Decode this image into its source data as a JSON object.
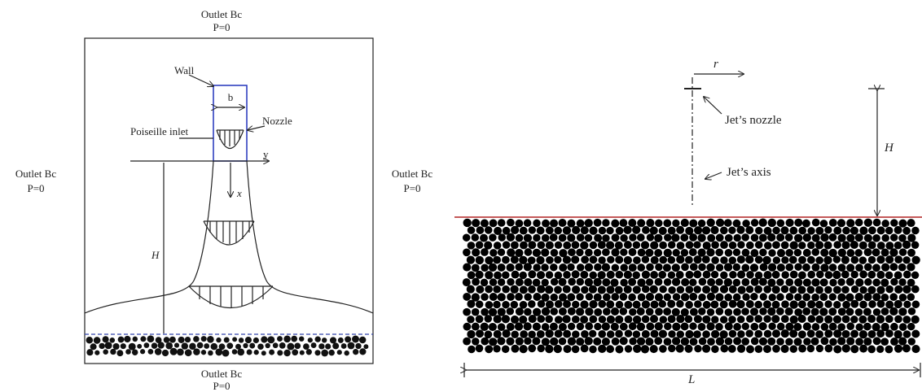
{
  "left_diagram": {
    "outlets": {
      "top": {
        "name": "Outlet Bc",
        "condition": "P=0"
      },
      "left": {
        "name": "Outlet Bc",
        "condition": "P=0"
      },
      "right": {
        "name": "Outlet Bc",
        "condition": "P=0"
      },
      "bottom": {
        "name": "Outlet Bc",
        "condition": "P=0"
      }
    },
    "labels": {
      "wall": "Wall",
      "b": "b",
      "nozzle": "Nozzle",
      "inlet": "Poiseille inlet",
      "y": "y",
      "x": "x",
      "H": "H"
    }
  },
  "right_diagram": {
    "labels": {
      "r": "r",
      "nozzle": "Jet’s nozzle",
      "axis": "Jet’s axis",
      "H": "H",
      "L": "L"
    }
  }
}
